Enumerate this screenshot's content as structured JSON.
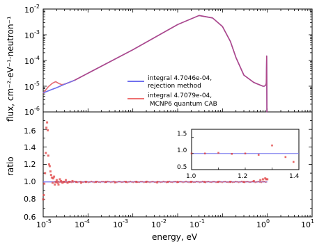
{
  "chart_data": [
    {
      "type": "line",
      "panel": "top",
      "ylabel": "flux, cm⁻²·eV⁻¹·neutron⁻¹",
      "xscale": "log",
      "yscale": "log",
      "xlim": [
        1e-05,
        10
      ],
      "ylim": [
        1e-06,
        0.01
      ],
      "legend_position": "center-right",
      "series": [
        {
          "name": "integral 4.7046e-04, rejection method",
          "color": "#7070ee",
          "x": [
            1e-05,
            1.5e-05,
            2e-05,
            3e-05,
            5e-05,
            0.0001,
            0.001,
            0.01,
            0.03,
            0.06,
            0.1,
            0.15,
            0.2,
            0.3,
            0.5,
            0.7,
            0.8,
            0.85,
            0.9,
            0.93,
            0.95,
            0.97,
            0.98,
            1.0
          ],
          "y": [
            5.5e-06,
            7.3e-06,
            8.8e-06,
            1.2e-05,
            1.7e-05,
            3.2e-05,
            0.00026,
            0.0025,
            0.0056,
            0.0045,
            0.0021,
            0.00055,
            0.00013,
            2.7e-05,
            1.4e-05,
            1.1e-05,
            1e-05,
            1e-05,
            1.05e-05,
            1.15e-05,
            1.3e-05,
            0.00015,
            1e-06,
            1e-06
          ]
        },
        {
          "name": "integral 4.7079e-04, MCNP6 quantum CAB",
          "color": "#ee7070",
          "x": [
            1e-05,
            1.3e-05,
            1.6e-05,
            1.9e-05,
            2.2e-05,
            2.6e-05,
            3e-05,
            5e-05,
            0.0001,
            0.001,
            0.01,
            0.03,
            0.06,
            0.1,
            0.15,
            0.2,
            0.3,
            0.5,
            0.7,
            0.8,
            0.85,
            0.9,
            0.93,
            0.95,
            0.97,
            0.98,
            1.0
          ],
          "y": [
            5.3e-06,
            9.5e-06,
            1.3e-05,
            1.5e-05,
            1.3e-05,
            1.15e-05,
            1.2e-05,
            1.7e-05,
            3.2e-05,
            0.00026,
            0.0025,
            0.0056,
            0.0045,
            0.0021,
            0.00055,
            0.00013,
            2.7e-05,
            1.4e-05,
            1.1e-05,
            1e-05,
            1e-05,
            1.05e-05,
            1.15e-05,
            1.3e-05,
            0.00015,
            1e-06,
            1e-06
          ]
        }
      ],
      "combined_color": "#b04888"
    },
    {
      "type": "scatter",
      "panel": "bottom",
      "xlabel": "energy, eV",
      "ylabel": "ratio",
      "xscale": "log",
      "xlim": [
        1e-05,
        10
      ],
      "ylim": [
        0.6,
        1.8
      ],
      "reference_line": 1.0,
      "reference_color": "#7070ee",
      "marker_color": "#e04040",
      "x": [
        1e-05,
        1.03e-05,
        1.06e-05,
        1.1e-05,
        1.14e-05,
        1.18e-05,
        1.22e-05,
        1.26e-05,
        1.3e-05,
        1.35e-05,
        1.4e-05,
        1.45e-05,
        1.5e-05,
        1.56e-05,
        1.62e-05,
        1.68e-05,
        1.75e-05,
        1.82e-05,
        1.9e-05,
        2e-05,
        2.1e-05,
        2.2e-05,
        2.35e-05,
        2.5e-05,
        2.7e-05,
        2.9e-05,
        3.2e-05,
        3.5e-05,
        3.9e-05,
        4.5e-05,
        5.5e-05,
        7e-05,
        9e-05,
        0.00015,
        0.00025,
        0.0004,
        0.0007,
        0.0012,
        0.002,
        0.0035,
        0.006,
        0.01,
        0.02,
        0.04,
        0.08,
        0.15,
        0.3,
        0.5,
        0.7,
        0.8,
        0.9,
        0.95,
        1.0
      ],
      "y": [
        0.8,
        0.85,
        0.98,
        1.1,
        1.33,
        1.62,
        1.68,
        1.59,
        1.3,
        1.2,
        1.18,
        1.12,
        1.08,
        1.05,
        0.99,
        1.04,
        1.06,
        0.97,
        1.0,
        1.02,
        0.99,
        0.97,
        1.03,
        1.01,
        0.99,
        1.0,
        1.02,
        0.99,
        1.0,
        1.01,
        1.0,
        0.99,
        1.0,
        1.0,
        1.0,
        0.995,
        1.0,
        1.0,
        1.0,
        0.995,
        1.0,
        1.0,
        1.0,
        1.0,
        1.0,
        1.0,
        1.0,
        1.01,
        1.02,
        1.03,
        1.04,
        1.03,
        1.03
      ]
    },
    {
      "type": "scatter",
      "panel": "inset",
      "xlim": [
        1.0,
        1.4
      ],
      "ylim": [
        0.5,
        1.75
      ],
      "reference_line": 1.0,
      "x": [
        1.0,
        1.05,
        1.1,
        1.15,
        1.2,
        1.25,
        1.3,
        1.35,
        1.38
      ],
      "y": [
        1.0,
        1.0,
        1.02,
        0.99,
        1.0,
        0.96,
        1.25,
        0.89,
        0.74
      ]
    }
  ],
  "labels": {
    "ylabel_top": "flux, cm⁻²·eV⁻¹·neutron⁻¹",
    "ylabel_bottom": "ratio",
    "xlabel": "energy, eV",
    "legend_rejection": [
      "integral 4.7046e-04,",
      "rejection method"
    ],
    "legend_mcnp": [
      "integral 4.7079e-04,",
      " MCNP6 quantum CAB"
    ]
  },
  "ticks": {
    "x_exponents": [
      "-5",
      "-4",
      "-3",
      "-2",
      "-1",
      "0",
      "1"
    ],
    "top_y_exponents": [
      "-2",
      "-3",
      "-4",
      "-5",
      "-6"
    ],
    "bottom_y": [
      "1.6",
      "1.4",
      "1.2",
      "1.0",
      "0.8",
      "0.6"
    ],
    "inset_x": [
      "1.0",
      "1.2",
      "1.4"
    ],
    "inset_y": [
      "1.5",
      "1.0",
      "0.5"
    ]
  }
}
